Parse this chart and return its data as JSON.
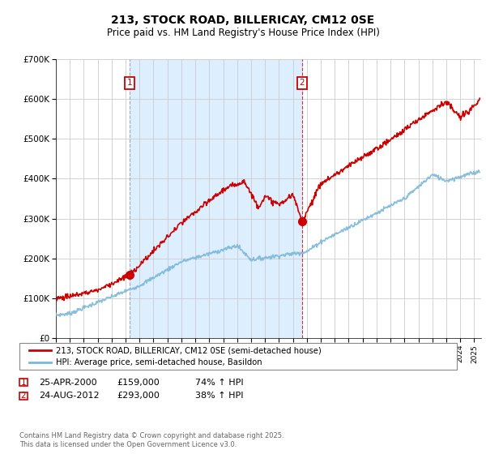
{
  "title": "213, STOCK ROAD, BILLERICAY, CM12 0SE",
  "subtitle": "Price paid vs. HM Land Registry's House Price Index (HPI)",
  "legend_line1": "213, STOCK ROAD, BILLERICAY, CM12 0SE (semi-detached house)",
  "legend_line2": "HPI: Average price, semi-detached house, Basildon",
  "footnote": "Contains HM Land Registry data © Crown copyright and database right 2025.\nThis data is licensed under the Open Government Licence v3.0.",
  "sale1_date": "25-APR-2000",
  "sale1_price": "£159,000",
  "sale1_hpi": "74% ↑ HPI",
  "sale1_year": 2000.3,
  "sale1_value": 159000,
  "sale2_date": "24-AUG-2012",
  "sale2_price": "£293,000",
  "sale2_hpi": "38% ↑ HPI",
  "sale2_year": 2012.65,
  "sale2_value": 293000,
  "hpi_color": "#7ab8d9",
  "price_color": "#cc0000",
  "vline1_color": "#888888",
  "vline2_color": "#cc0000",
  "bg_between_color": "#ddeeff",
  "ylim": [
    0,
    700000
  ],
  "xlim_start": 1995.0,
  "xlim_end": 2025.5
}
